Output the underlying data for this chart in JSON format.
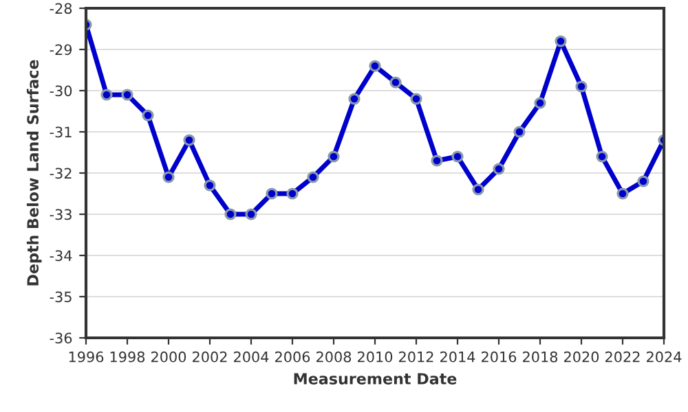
{
  "chart_data": {
    "type": "line",
    "xlabel": "Measurement Date",
    "ylabel": "Depth Below Land Surface",
    "x": [
      1996,
      1997,
      1998,
      1999,
      2000,
      2001,
      2002,
      2003,
      2004,
      2005,
      2006,
      2007,
      2008,
      2009,
      2010,
      2011,
      2012,
      2013,
      2014,
      2015,
      2016,
      2017,
      2018,
      2019,
      2020,
      2021,
      2022,
      2023,
      2024
    ],
    "series": [
      {
        "color": "#0000cc",
        "values": [
          -28.4,
          -30.1,
          -30.1,
          -30.6,
          -32.1,
          -31.2,
          -32.3,
          -33.0,
          -33.0,
          -32.5,
          -32.5,
          -32.1,
          -31.6,
          -30.2,
          -29.4,
          -29.8,
          -30.2,
          -31.7,
          -31.6,
          -32.4,
          -31.9,
          -31.0,
          -30.3,
          -28.8,
          -29.9,
          -31.6,
          -32.5,
          -32.2,
          -31.2
        ]
      }
    ],
    "xlim": [
      1996,
      2024
    ],
    "xticks": [
      1996,
      1998,
      2000,
      2002,
      2004,
      2006,
      2008,
      2010,
      2012,
      2014,
      2016,
      2018,
      2020,
      2022,
      2024
    ],
    "ylim": [
      -36,
      -28
    ],
    "yticks": [
      -36,
      -35,
      -34,
      -33,
      -32,
      -31,
      -30,
      -29,
      -28
    ],
    "grid": "y",
    "marker": "circle",
    "line_style": "solid"
  }
}
